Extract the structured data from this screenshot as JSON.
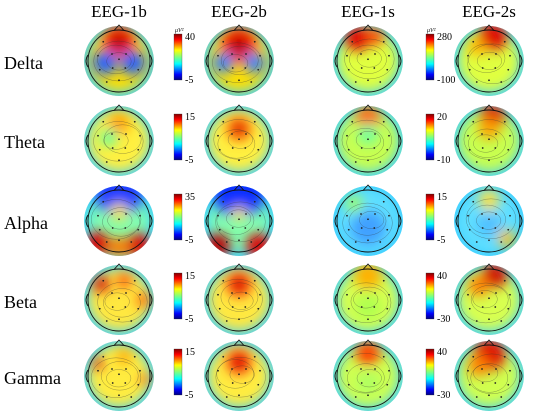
{
  "chart_data": {
    "type": "heatmap",
    "description_kind": "eeg-topographic-maps",
    "columns": [
      "EEG-1b",
      "EEG-2b",
      "EEG-1s",
      "EEG-2s"
    ],
    "rows": [
      "Delta",
      "Theta",
      "Alpha",
      "Beta",
      "Gamma"
    ],
    "colorbar_unit": "μV²",
    "colormap": "jet",
    "colorbars": [
      {
        "group": "b",
        "band": "Delta",
        "range": [
          -5,
          40
        ],
        "tick_labels": [
          "40",
          "-5"
        ]
      },
      {
        "group": "b",
        "band": "Theta",
        "range": [
          -5,
          15
        ],
        "tick_labels": [
          "15",
          "-5"
        ]
      },
      {
        "group": "b",
        "band": "Alpha",
        "range": [
          -5,
          35
        ],
        "tick_labels": [
          "35",
          "-5"
        ]
      },
      {
        "group": "b",
        "band": "Beta",
        "range": [
          -5,
          15
        ],
        "tick_labels": [
          "15",
          "-5"
        ]
      },
      {
        "group": "b",
        "band": "Gamma",
        "range": [
          -5,
          15
        ],
        "tick_labels": [
          "15",
          "-5"
        ]
      },
      {
        "group": "s",
        "band": "Delta",
        "range": [
          -100,
          280
        ],
        "tick_labels": [
          "280",
          "-100"
        ]
      },
      {
        "group": "s",
        "band": "Theta",
        "range": [
          -10,
          20
        ],
        "tick_labels": [
          "20",
          "-10"
        ]
      },
      {
        "group": "s",
        "band": "Alpha",
        "range": [
          -5,
          15
        ],
        "tick_labels": [
          "15",
          "-5"
        ]
      },
      {
        "group": "s",
        "band": "Beta",
        "range": [
          -30,
          40
        ],
        "tick_labels": [
          "40",
          "-30"
        ]
      },
      {
        "group": "s",
        "band": "Gamma",
        "range": [
          -30,
          40
        ],
        "tick_labels": [
          "40",
          "-30"
        ]
      }
    ]
  }
}
